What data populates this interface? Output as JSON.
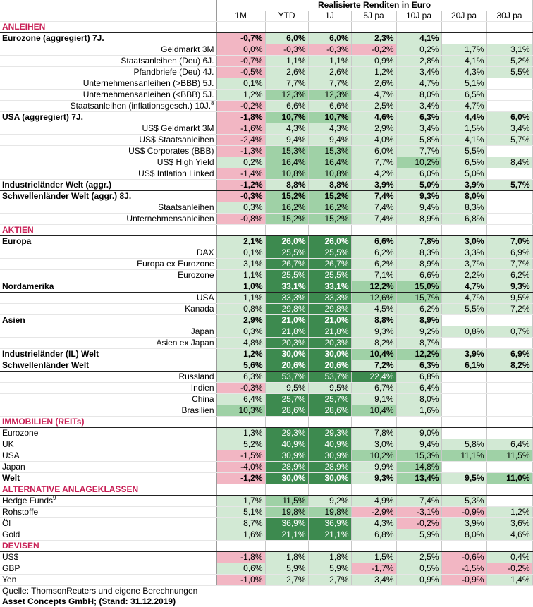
{
  "title": "Realisierte Renditen in Euro",
  "columns": [
    "1M",
    "YTD",
    "1J",
    "5J pa",
    "10J pa",
    "20J pa",
    "30J pa"
  ],
  "rows": [
    {
      "type": "sec",
      "label": "ANLEIHEN"
    },
    {
      "type": "agg",
      "label": "Eurozone (aggregiert) 7J.",
      "vals": [
        "-0,7%",
        "6,0%",
        "6,0%",
        "2,3%",
        "4,1%",
        "",
        ""
      ],
      "c": [
        "p",
        "1",
        "1",
        "1",
        "1",
        "0",
        "0"
      ]
    },
    {
      "type": "row",
      "label": "Geldmarkt 3M",
      "vals": [
        "0,0%",
        "-0,3%",
        "-0,3%",
        "-0,2%",
        "0,2%",
        "1,7%",
        "3,1%"
      ],
      "c": [
        "p",
        "p",
        "p",
        "p",
        "1",
        "1",
        "1"
      ]
    },
    {
      "type": "row",
      "label": "Staatsanleihen (Deu) 6J.",
      "vals": [
        "-0,7%",
        "1,1%",
        "1,1%",
        "0,9%",
        "2,8%",
        "4,1%",
        "5,2%"
      ],
      "c": [
        "p",
        "1",
        "1",
        "1",
        "1",
        "1",
        "1"
      ]
    },
    {
      "type": "row",
      "label": "Pfandbriefe (Deu) 4J.",
      "vals": [
        "-0,5%",
        "2,6%",
        "2,6%",
        "1,2%",
        "3,4%",
        "4,3%",
        "5,5%"
      ],
      "c": [
        "p",
        "1",
        "1",
        "1",
        "1",
        "1",
        "1"
      ]
    },
    {
      "type": "row",
      "label": "Unternehmensanleihen (>BBB) 5J.",
      "vals": [
        "0,1%",
        "7,7%",
        "7,7%",
        "2,6%",
        "4,7%",
        "5,1%",
        ""
      ],
      "c": [
        "1",
        "1",
        "1",
        "1",
        "1",
        "1",
        "0"
      ]
    },
    {
      "type": "row",
      "label": "Unternehmensanleihen (<BBB) 5J.",
      "vals": [
        "1,2%",
        "12,3%",
        "12,3%",
        "4,7%",
        "8,0%",
        "6,5%",
        ""
      ],
      "c": [
        "1",
        "2",
        "2",
        "1",
        "1",
        "1",
        "0"
      ]
    },
    {
      "type": "row",
      "label": "Staatsanleihen (inflationsgesch.) 10J.",
      "sup": "8",
      "vals": [
        "-0,2%",
        "6,6%",
        "6,6%",
        "2,5%",
        "3,4%",
        "4,7%",
        ""
      ],
      "c": [
        "p",
        "1",
        "1",
        "1",
        "1",
        "1",
        "0"
      ]
    },
    {
      "type": "agg",
      "label": "USA (aggregiert) 7J.",
      "vals": [
        "-1,8%",
        "10,7%",
        "10,7%",
        "4,6%",
        "6,3%",
        "4,4%",
        "6,0%"
      ],
      "c": [
        "p",
        "2",
        "2",
        "1",
        "1",
        "1",
        "1"
      ]
    },
    {
      "type": "row",
      "label": "US$ Geldmarkt 3M",
      "vals": [
        "-1,6%",
        "4,3%",
        "4,3%",
        "2,9%",
        "3,4%",
        "1,5%",
        "3,4%"
      ],
      "c": [
        "p",
        "1",
        "1",
        "1",
        "1",
        "1",
        "1"
      ]
    },
    {
      "type": "row",
      "label": "US$ Staatsanleihen",
      "vals": [
        "-2,4%",
        "9,4%",
        "9,4%",
        "4,0%",
        "5,8%",
        "4,1%",
        "5,7%"
      ],
      "c": [
        "p",
        "1",
        "1",
        "1",
        "1",
        "1",
        "1"
      ]
    },
    {
      "type": "row",
      "label": "US$ Corporates (BBB)",
      "vals": [
        "-1,3%",
        "15,3%",
        "15,3%",
        "6,0%",
        "7,7%",
        "5,5%",
        ""
      ],
      "c": [
        "p",
        "2",
        "2",
        "1",
        "1",
        "1",
        "0"
      ]
    },
    {
      "type": "row",
      "label": "US$ High Yield",
      "vals": [
        "0,2%",
        "16,4%",
        "16,4%",
        "7,7%",
        "10,2%",
        "6,5%",
        "8,4%"
      ],
      "c": [
        "1",
        "2",
        "2",
        "1",
        "2",
        "1",
        "1"
      ]
    },
    {
      "type": "row",
      "label": "US$ Inflation Linked",
      "vals": [
        "-1,4%",
        "10,8%",
        "10,8%",
        "4,2%",
        "6,0%",
        "5,0%",
        ""
      ],
      "c": [
        "p",
        "2",
        "2",
        "1",
        "1",
        "1",
        "0"
      ]
    },
    {
      "type": "agg",
      "label": "Industrieländer Welt (aggr.)",
      "vals": [
        "-1,2%",
        "8,8%",
        "8,8%",
        "3,9%",
        "5,0%",
        "3,9%",
        "5,7%"
      ],
      "c": [
        "p",
        "1",
        "1",
        "1",
        "1",
        "1",
        "1"
      ]
    },
    {
      "type": "agg",
      "label": "Schwellenländer Welt (aggr.) 8J.",
      "vals": [
        "-0,3%",
        "15,2%",
        "15,2%",
        "7,4%",
        "9,3%",
        "8,0%",
        ""
      ],
      "c": [
        "p",
        "2",
        "2",
        "1",
        "1",
        "1",
        "0"
      ]
    },
    {
      "type": "row",
      "label": "Staatsanleihen",
      "vals": [
        "0,3%",
        "16,2%",
        "16,2%",
        "7,4%",
        "9,4%",
        "8,3%",
        ""
      ],
      "c": [
        "1",
        "2",
        "2",
        "1",
        "1",
        "1",
        "0"
      ]
    },
    {
      "type": "row",
      "label": "Unternehmensanleihen",
      "vals": [
        "-0,8%",
        "15,2%",
        "15,2%",
        "7,4%",
        "8,9%",
        "6,8%",
        ""
      ],
      "c": [
        "p",
        "2",
        "2",
        "1",
        "1",
        "1",
        "0"
      ]
    },
    {
      "type": "sec",
      "label": "AKTIEN"
    },
    {
      "type": "agg",
      "label": "Europa",
      "vals": [
        "2,1%",
        "26,0%",
        "26,0%",
        "6,6%",
        "7,8%",
        "3,0%",
        "7,0%"
      ],
      "c": [
        "1",
        "3",
        "3",
        "1",
        "1",
        "1",
        "1"
      ]
    },
    {
      "type": "row",
      "label": "DAX",
      "vals": [
        "0,1%",
        "25,5%",
        "25,5%",
        "6,2%",
        "8,3%",
        "3,3%",
        "6,9%"
      ],
      "c": [
        "1",
        "3",
        "3",
        "1",
        "1",
        "1",
        "1"
      ]
    },
    {
      "type": "row",
      "label": "Europa ex Eurozone",
      "vals": [
        "3,1%",
        "26,7%",
        "26,7%",
        "6,2%",
        "8,9%",
        "3,7%",
        "7,7%"
      ],
      "c": [
        "1",
        "3",
        "3",
        "1",
        "1",
        "1",
        "1"
      ]
    },
    {
      "type": "row",
      "label": "Eurozone",
      "vals": [
        "1,1%",
        "25,5%",
        "25,5%",
        "7,1%",
        "6,6%",
        "2,2%",
        "6,2%"
      ],
      "c": [
        "1",
        "3",
        "3",
        "1",
        "1",
        "1",
        "1"
      ]
    },
    {
      "type": "agg",
      "label": "Nordamerika",
      "vals": [
        "1,0%",
        "33,1%",
        "33,1%",
        "12,2%",
        "15,0%",
        "4,7%",
        "9,3%"
      ],
      "c": [
        "1",
        "3",
        "3",
        "2",
        "2",
        "1",
        "1"
      ]
    },
    {
      "type": "row",
      "label": "USA",
      "vals": [
        "1,1%",
        "33,3%",
        "33,3%",
        "12,6%",
        "15,7%",
        "4,7%",
        "9,5%"
      ],
      "c": [
        "1",
        "3",
        "3",
        "2",
        "2",
        "1",
        "1"
      ]
    },
    {
      "type": "row",
      "label": "Kanada",
      "vals": [
        "0,8%",
        "29,8%",
        "29,8%",
        "4,5%",
        "6,2%",
        "5,5%",
        "7,2%"
      ],
      "c": [
        "1",
        "3",
        "3",
        "1",
        "1",
        "1",
        "1"
      ]
    },
    {
      "type": "agg",
      "label": "Asien",
      "vals": [
        "2,9%",
        "21,0%",
        "21,0%",
        "8,8%",
        "8,9%",
        "",
        ""
      ],
      "c": [
        "1",
        "3",
        "3",
        "1",
        "1",
        "0",
        "0"
      ]
    },
    {
      "type": "row",
      "label": "Japan",
      "vals": [
        "0,3%",
        "21,8%",
        "21,8%",
        "9,3%",
        "9,2%",
        "0,8%",
        "0,7%"
      ],
      "c": [
        "1",
        "3",
        "3",
        "1",
        "1",
        "1",
        "1"
      ]
    },
    {
      "type": "row",
      "label": "Asien ex Japan",
      "vals": [
        "4,8%",
        "20,3%",
        "20,3%",
        "8,2%",
        "8,7%",
        "",
        ""
      ],
      "c": [
        "1",
        "3",
        "3",
        "1",
        "1",
        "0",
        "0"
      ]
    },
    {
      "type": "agg",
      "label": "Industrieländer (IL) Welt",
      "vals": [
        "1,2%",
        "30,0%",
        "30,0%",
        "10,4%",
        "12,2%",
        "3,9%",
        "6,9%"
      ],
      "c": [
        "1",
        "3",
        "3",
        "2",
        "2",
        "1",
        "1"
      ]
    },
    {
      "type": "agg",
      "label": "Schwellenländer Welt",
      "vals": [
        "5,6%",
        "20,6%",
        "20,6%",
        "7,2%",
        "6,3%",
        "6,1%",
        "8,2%"
      ],
      "c": [
        "1",
        "3",
        "3",
        "1",
        "1",
        "1",
        "1"
      ]
    },
    {
      "type": "row",
      "label": "Russland",
      "vals": [
        "6,3%",
        "53,7%",
        "53,7%",
        "22,4%",
        "6,8%",
        "",
        ""
      ],
      "c": [
        "1",
        "3",
        "3",
        "3",
        "1",
        "0",
        "0"
      ]
    },
    {
      "type": "row",
      "label": "Indien",
      "vals": [
        "-0,3%",
        "9,5%",
        "9,5%",
        "6,7%",
        "6,4%",
        "",
        ""
      ],
      "c": [
        "p",
        "1",
        "1",
        "1",
        "1",
        "0",
        "0"
      ]
    },
    {
      "type": "row",
      "label": "China",
      "vals": [
        "6,4%",
        "25,7%",
        "25,7%",
        "9,1%",
        "8,0%",
        "",
        ""
      ],
      "c": [
        "1",
        "3",
        "3",
        "1",
        "1",
        "0",
        "0"
      ]
    },
    {
      "type": "row",
      "label": "Brasilien",
      "vals": [
        "10,3%",
        "28,6%",
        "28,6%",
        "10,4%",
        "1,6%",
        "",
        ""
      ],
      "c": [
        "2",
        "3",
        "3",
        "2",
        "1",
        "0",
        "0"
      ]
    },
    {
      "type": "sec",
      "label": "IMMOBILIEN (REITs)"
    },
    {
      "type": "rowl",
      "label": "Eurozone",
      "vals": [
        "1,3%",
        "29,3%",
        "29,3%",
        "7,8%",
        "9,0%",
        "",
        ""
      ],
      "c": [
        "1",
        "3",
        "3",
        "1",
        "1",
        "0",
        "0"
      ]
    },
    {
      "type": "rowl",
      "label": "UK",
      "vals": [
        "5,2%",
        "40,9%",
        "40,9%",
        "3,0%",
        "9,4%",
        "5,8%",
        "6,4%"
      ],
      "c": [
        "1",
        "3",
        "3",
        "1",
        "1",
        "1",
        "1"
      ]
    },
    {
      "type": "rowl",
      "label": "USA",
      "vals": [
        "-1,5%",
        "30,9%",
        "30,9%",
        "10,2%",
        "15,3%",
        "11,1%",
        "11,5%"
      ],
      "c": [
        "p",
        "3",
        "3",
        "2",
        "2",
        "2",
        "2"
      ]
    },
    {
      "type": "rowl",
      "label": "Japan",
      "vals": [
        "-4,0%",
        "28,9%",
        "28,9%",
        "9,9%",
        "14,8%",
        "",
        ""
      ],
      "c": [
        "p",
        "3",
        "3",
        "1",
        "2",
        "0",
        "0"
      ]
    },
    {
      "type": "agg",
      "label": "Welt",
      "vals": [
        "-1,2%",
        "30,0%",
        "30,0%",
        "9,3%",
        "13,4%",
        "9,5%",
        "11,0%"
      ],
      "c": [
        "p",
        "3",
        "3",
        "1",
        "2",
        "1",
        "2"
      ]
    },
    {
      "type": "sec",
      "label": "ALTERNATIVE ANLAGEKLASSEN"
    },
    {
      "type": "rowl",
      "label": "Hedge Funds",
      "sup": "9",
      "vals": [
        "1,7%",
        "11,5%",
        "9,2%",
        "4,9%",
        "7,4%",
        "5,3%",
        ""
      ],
      "c": [
        "1",
        "2",
        "1",
        "1",
        "1",
        "1",
        "0"
      ]
    },
    {
      "type": "rowl",
      "label": "Rohstoffe",
      "vals": [
        "5,1%",
        "19,8%",
        "19,8%",
        "-2,9%",
        "-3,1%",
        "-0,9%",
        "1,2%"
      ],
      "c": [
        "1",
        "2",
        "2",
        "p",
        "p",
        "p",
        "1"
      ]
    },
    {
      "type": "rowl",
      "label": "Öl",
      "vals": [
        "8,7%",
        "36,9%",
        "36,9%",
        "4,3%",
        "-0,2%",
        "3,9%",
        "3,6%"
      ],
      "c": [
        "1",
        "3",
        "3",
        "1",
        "p",
        "1",
        "1"
      ]
    },
    {
      "type": "rowl",
      "label": "Gold",
      "vals": [
        "1,6%",
        "21,1%",
        "21,1%",
        "6,8%",
        "5,9%",
        "8,0%",
        "4,6%"
      ],
      "c": [
        "1",
        "3",
        "3",
        "1",
        "1",
        "1",
        "1"
      ]
    },
    {
      "type": "sec",
      "label": "DEVISEN"
    },
    {
      "type": "rowl",
      "label": "US$",
      "vals": [
        "-1,8%",
        "1,8%",
        "1,8%",
        "1,5%",
        "2,5%",
        "-0,6%",
        "0,4%"
      ],
      "c": [
        "p",
        "1",
        "1",
        "1",
        "1",
        "p",
        "1"
      ]
    },
    {
      "type": "rowl",
      "label": "GBP",
      "vals": [
        "0,6%",
        "5,9%",
        "5,9%",
        "-1,7%",
        "0,5%",
        "-1,5%",
        "-0,2%"
      ],
      "c": [
        "1",
        "1",
        "1",
        "p",
        "1",
        "p",
        "p"
      ]
    },
    {
      "type": "rowl",
      "label": "Yen",
      "vals": [
        "-1,0%",
        "2,7%",
        "2,7%",
        "3,4%",
        "0,9%",
        "-0,9%",
        "1,4%"
      ],
      "c": [
        "p",
        "1",
        "1",
        "1",
        "1",
        "p",
        "1"
      ]
    }
  ],
  "footer": {
    "source": "Quelle: ThomsonReuters und eigene Berechnungen",
    "company": "Asset Concepts GmbH; (Stand: 31.12.2019)"
  }
}
